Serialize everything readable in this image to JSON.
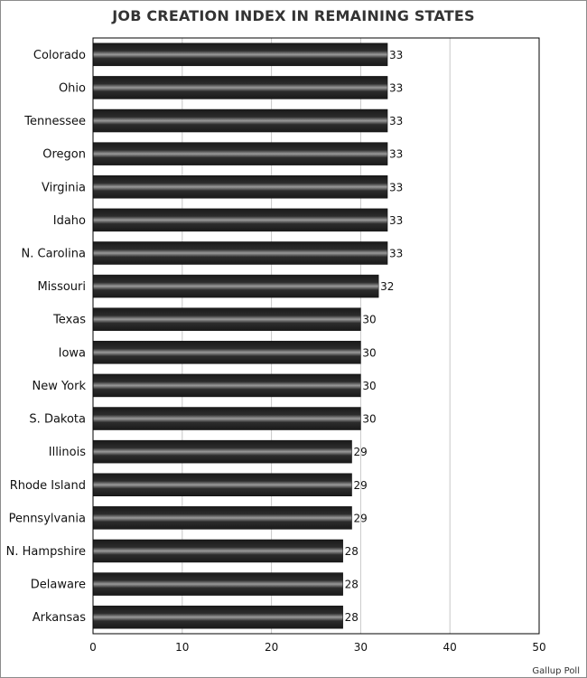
{
  "chart_data": {
    "type": "bar",
    "orientation": "horizontal",
    "title": "JOB CREATION INDEX IN REMAINING STATES",
    "categories": [
      "Colorado",
      "Ohio",
      "Tennessee",
      "Oregon",
      "Virginia",
      "Idaho",
      "N. Carolina",
      "Missouri",
      "Texas",
      "Iowa",
      "New York",
      "S. Dakota",
      "Illinois",
      "Rhode Island",
      "Pennsylvania",
      "N. Hampshire",
      "Delaware",
      "Arkansas"
    ],
    "values": [
      33,
      33,
      33,
      33,
      33,
      33,
      33,
      32,
      30,
      30,
      30,
      30,
      29,
      29,
      29,
      28,
      28,
      28
    ],
    "xlim": [
      0,
      50
    ],
    "xticks": [
      0,
      10,
      20,
      30,
      40,
      50
    ],
    "grid": "vertical",
    "bar_color": "#1c1c1c",
    "data_labels": true
  },
  "source": "Gallup Poll"
}
